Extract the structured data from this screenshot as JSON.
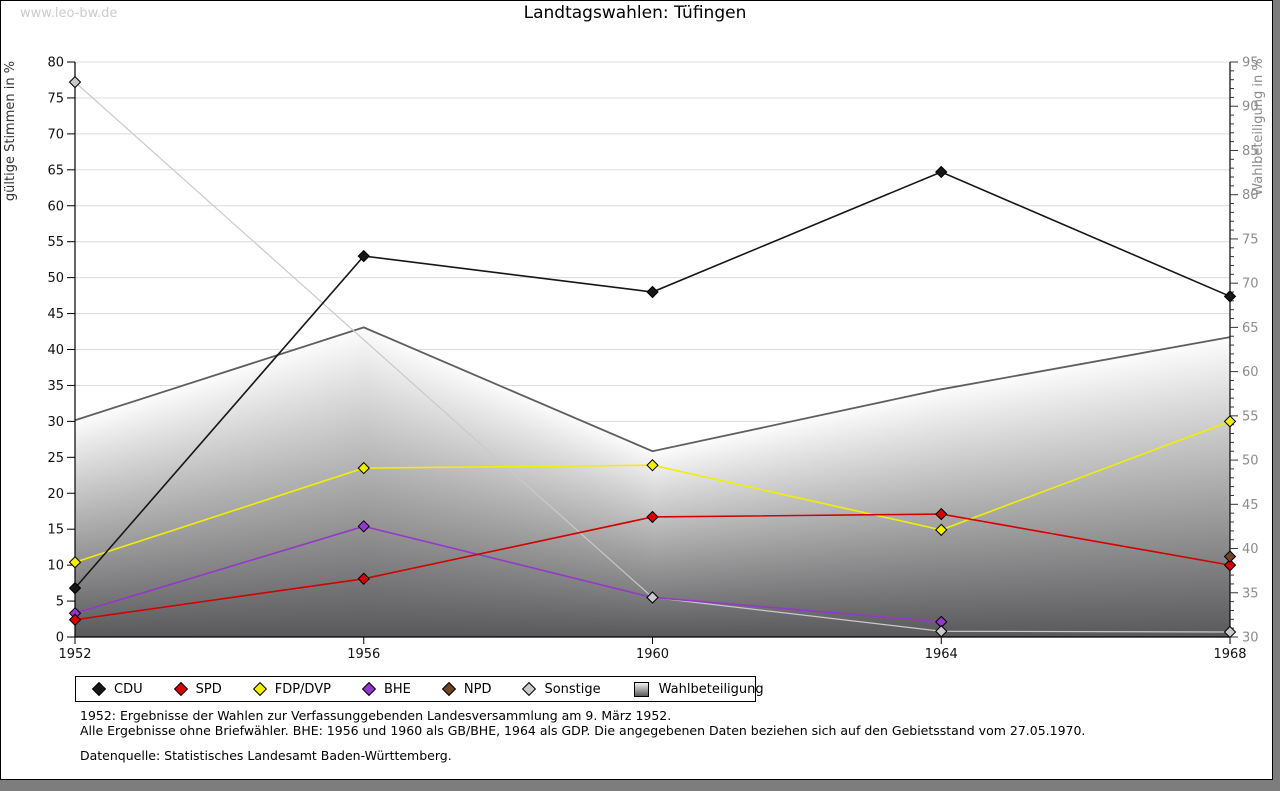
{
  "page": {
    "watermark": "www.leo-bw.de",
    "title": "Landtagswahlen: Tüfingen"
  },
  "footnotes": {
    "line1": "1952: Ergebnisse der Wahlen zur Verfassunggebenden Landesversammlung am 9. März 1952.",
    "line2": "Alle Ergebnisse ohne Briefwähler. BHE: 1956 und 1960 als GB/BHE, 1964 als GDP. Die angegebenen Daten beziehen sich auf den Gebietsstand vom 27.05.1970.",
    "source": "Datenquelle: Statistisches Landesamt Baden-Württemberg."
  },
  "chart_data": {
    "type": "line",
    "title": "Landtagswahlen: Tüfingen",
    "x": [
      1952,
      1956,
      1960,
      1964,
      1968
    ],
    "left_axis": {
      "label": "gültige Stimmen in %",
      "min": 0,
      "max": 80,
      "tick_step": 5
    },
    "right_axis": {
      "label": "Wahlbeteiligung in %",
      "min": 30,
      "max": 95,
      "tick_step": 5,
      "minor_step": 1
    },
    "grid": "horizontal",
    "legend_position": "bottom",
    "series": [
      {
        "name": "CDU",
        "axis": "left",
        "style": "line",
        "color": "#161616",
        "values": [
          6.8,
          53.0,
          48.0,
          64.7,
          47.4
        ]
      },
      {
        "name": "SPD",
        "axis": "left",
        "style": "line",
        "color": "#d40000",
        "values": [
          2.4,
          8.1,
          16.7,
          17.1,
          10.0
        ]
      },
      {
        "name": "FDP/DVP",
        "axis": "left",
        "style": "line",
        "color": "#f2ee00",
        "values": [
          10.4,
          23.5,
          23.9,
          14.9,
          30.0
        ]
      },
      {
        "name": "BHE",
        "axis": "left",
        "style": "line",
        "color": "#9438c9",
        "values": [
          3.3,
          15.4,
          5.5,
          2.1,
          null
        ]
      },
      {
        "name": "NPD",
        "axis": "left",
        "style": "line",
        "color": "#6f4526",
        "values": [
          null,
          null,
          null,
          null,
          11.2
        ]
      },
      {
        "name": "Sonstige",
        "axis": "left",
        "style": "line",
        "color": "#c9c9c9",
        "values": [
          77.2,
          null,
          5.5,
          0.8,
          0.7
        ]
      },
      {
        "name": "Wahlbeteiligung",
        "axis": "right",
        "style": "area",
        "color": "#5f5f5f",
        "gradient_top": "#fcfcfc",
        "gradient_bottom": "#59595b",
        "values": [
          54.5,
          65.0,
          51.0,
          58.0,
          63.9
        ]
      }
    ]
  }
}
